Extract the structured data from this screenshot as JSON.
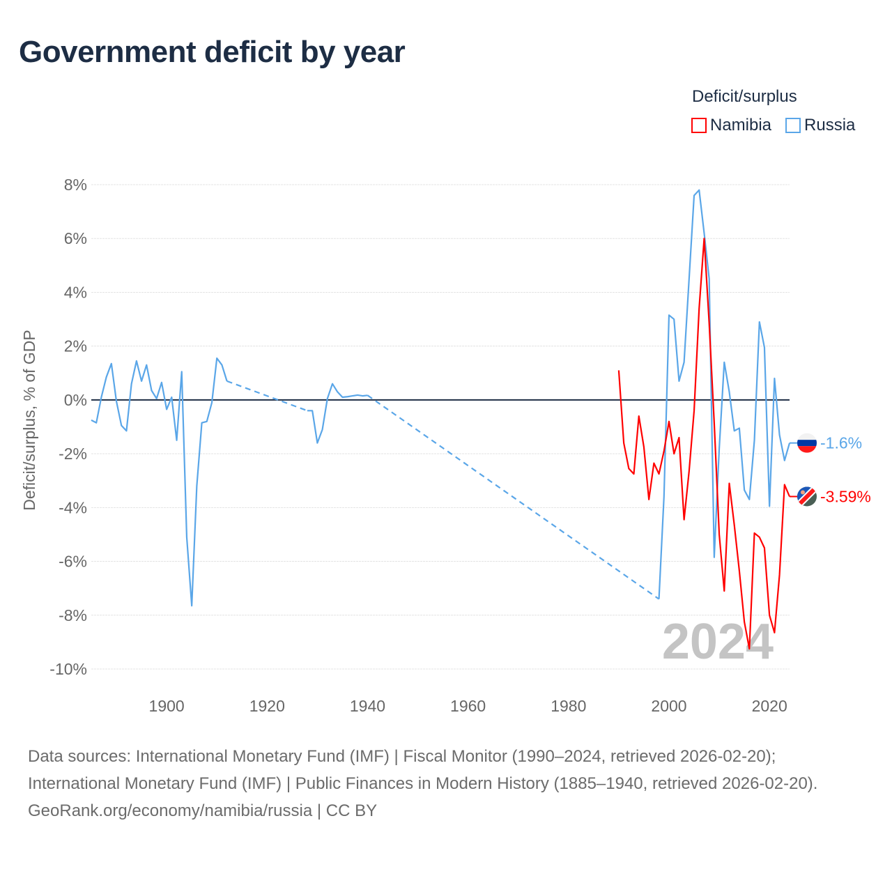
{
  "title": "Government deficit by year",
  "legend": {
    "title": "Deficit/surplus",
    "items": [
      {
        "name": "Namibia",
        "color": "#ff0000"
      },
      {
        "name": "Russia",
        "color": "#5aa6e8"
      }
    ]
  },
  "watermark_year": "2024",
  "source": {
    "line1": "Data sources: International Monetary Fund (IMF) | Fiscal Monitor (1990–2024, retrieved 2026-02-20); International Monetary Fund (IMF) | Public Finances in Modern History (1885–1940, retrieved 2026-02-20).",
    "line2": "GeoRank.org/economy/namibia/russia | CC BY"
  },
  "chart_data": {
    "type": "line",
    "title": "Government deficit by year",
    "xlabel": "",
    "ylabel": "Deficit/surplus, % of GDP",
    "xlim": [
      1885,
      2024
    ],
    "ylim": [
      -10,
      8
    ],
    "xticks": [
      1900,
      1920,
      1940,
      1960,
      1980,
      2000,
      2020
    ],
    "xtick_labels": [
      "1900",
      "1920",
      "1940",
      "1960",
      "1980",
      "2000",
      "2020"
    ],
    "yticks": [
      8,
      6,
      4,
      2,
      0,
      -2,
      -4,
      -6,
      -8,
      -10
    ],
    "ytick_labels": [
      "8%",
      "6%",
      "4%",
      "2%",
      "0%",
      "-2%",
      "-4%",
      "-6%",
      "-8%",
      "-10%"
    ],
    "grid": true,
    "legend_position": "top-right",
    "series": [
      {
        "name": "Russia",
        "color": "#5aa6e8",
        "end_label": "-1.6%",
        "flag": "russia",
        "points": [
          [
            1885,
            -0.75
          ],
          [
            1886,
            -0.85
          ],
          [
            1887,
            0.1
          ],
          [
            1888,
            0.85
          ],
          [
            1889,
            1.35
          ],
          [
            1890,
            -0.05
          ],
          [
            1891,
            -0.95
          ],
          [
            1892,
            -1.15
          ],
          [
            1893,
            0.6
          ],
          [
            1894,
            1.45
          ],
          [
            1895,
            0.7
          ],
          [
            1896,
            1.3
          ],
          [
            1897,
            0.35
          ],
          [
            1898,
            0.05
          ],
          [
            1899,
            0.65
          ],
          [
            1900,
            -0.35
          ],
          [
            1901,
            0.1
          ],
          [
            1902,
            -1.5
          ],
          [
            1903,
            1.05
          ],
          [
            1904,
            -5.1
          ],
          [
            1905,
            -7.65
          ],
          [
            1906,
            -3.2
          ],
          [
            1907,
            -0.85
          ],
          [
            1908,
            -0.8
          ],
          [
            1909,
            -0.1
          ],
          [
            1910,
            1.55
          ],
          [
            1911,
            1.3
          ],
          [
            1912,
            0.7
          ],
          [
            1928,
            -0.4
          ],
          [
            1929,
            -0.4
          ],
          [
            1930,
            -1.6
          ],
          [
            1931,
            -1.1
          ],
          [
            1932,
            0.05
          ],
          [
            1933,
            0.6
          ],
          [
            1934,
            0.3
          ],
          [
            1935,
            0.1
          ],
          [
            1936,
            0.12
          ],
          [
            1937,
            0.15
          ],
          [
            1938,
            0.18
          ],
          [
            1939,
            0.15
          ],
          [
            1940,
            0.17
          ],
          [
            1998,
            -7.4
          ],
          [
            1999,
            -3.6
          ],
          [
            2000,
            3.15
          ],
          [
            2001,
            3.0
          ],
          [
            2002,
            0.7
          ],
          [
            2003,
            1.4
          ],
          [
            2004,
            4.5
          ],
          [
            2005,
            7.6
          ],
          [
            2006,
            7.8
          ],
          [
            2007,
            6.2
          ],
          [
            2008,
            4.5
          ],
          [
            2009,
            -5.85
          ],
          [
            2010,
            -1.8
          ],
          [
            2011,
            1.4
          ],
          [
            2012,
            0.3
          ],
          [
            2013,
            -1.15
          ],
          [
            2014,
            -1.05
          ],
          [
            2015,
            -3.35
          ],
          [
            2016,
            -3.7
          ],
          [
            2017,
            -1.5
          ],
          [
            2018,
            2.9
          ],
          [
            2019,
            1.95
          ],
          [
            2020,
            -3.95
          ],
          [
            2021,
            0.8
          ],
          [
            2022,
            -1.3
          ],
          [
            2023,
            -2.25
          ],
          [
            2024,
            -1.6
          ]
        ]
      },
      {
        "name": "Namibia",
        "color": "#ff0000",
        "end_label": "-3.59%",
        "flag": "namibia",
        "points": [
          [
            1990,
            1.1
          ],
          [
            1991,
            -1.6
          ],
          [
            1992,
            -2.55
          ],
          [
            1993,
            -2.75
          ],
          [
            1994,
            -0.6
          ],
          [
            1995,
            -1.75
          ],
          [
            1996,
            -3.7
          ],
          [
            1997,
            -2.35
          ],
          [
            1998,
            -2.75
          ],
          [
            1999,
            -1.9
          ],
          [
            2000,
            -0.8
          ],
          [
            2001,
            -2.0
          ],
          [
            2002,
            -1.4
          ],
          [
            2003,
            -4.45
          ],
          [
            2004,
            -2.65
          ],
          [
            2005,
            -0.4
          ],
          [
            2006,
            3.4
          ],
          [
            2007,
            6.0
          ],
          [
            2008,
            2.85
          ],
          [
            2009,
            -0.85
          ],
          [
            2010,
            -5.0
          ],
          [
            2011,
            -7.1
          ],
          [
            2012,
            -3.1
          ],
          [
            2013,
            -4.65
          ],
          [
            2014,
            -6.35
          ],
          [
            2015,
            -8.25
          ],
          [
            2016,
            -9.25
          ],
          [
            2017,
            -4.95
          ],
          [
            2018,
            -5.1
          ],
          [
            2019,
            -5.5
          ],
          [
            2020,
            -8.0
          ],
          [
            2021,
            -8.65
          ],
          [
            2022,
            -6.5
          ],
          [
            2023,
            -3.15
          ],
          [
            2024,
            -3.59
          ]
        ]
      }
    ]
  }
}
